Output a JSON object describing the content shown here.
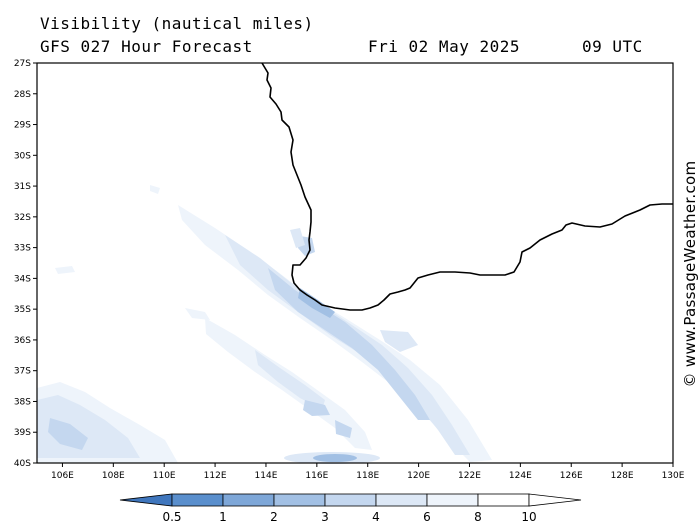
{
  "header": {
    "title": "Visibility (nautical miles)",
    "model": "GFS 027 Hour Forecast",
    "date": "Fri 02 May 2025",
    "time": "09 UTC"
  },
  "credit": "© www.PassageWeather.com",
  "lat_labels": [
    "27S",
    "28S",
    "29S",
    "30S",
    "31S",
    "32S",
    "33S",
    "34S",
    "35S",
    "36S",
    "37S",
    "38S",
    "39S",
    "40S"
  ],
  "lon_labels": [
    "106E",
    "108E",
    "110E",
    "112E",
    "114E",
    "116E",
    "118E",
    "120E",
    "122E",
    "124E",
    "126E",
    "128E",
    "130E"
  ],
  "colorbar": {
    "levels": [
      "0.5",
      "1",
      "2",
      "3",
      "4",
      "6",
      "8",
      "10"
    ],
    "colors": [
      "#3f76bd",
      "#5a8fcd",
      "#7ea7d8",
      "#a2c0e4",
      "#c4d7ef",
      "#dde8f6",
      "#eef4fb",
      "#ffffff"
    ]
  }
}
